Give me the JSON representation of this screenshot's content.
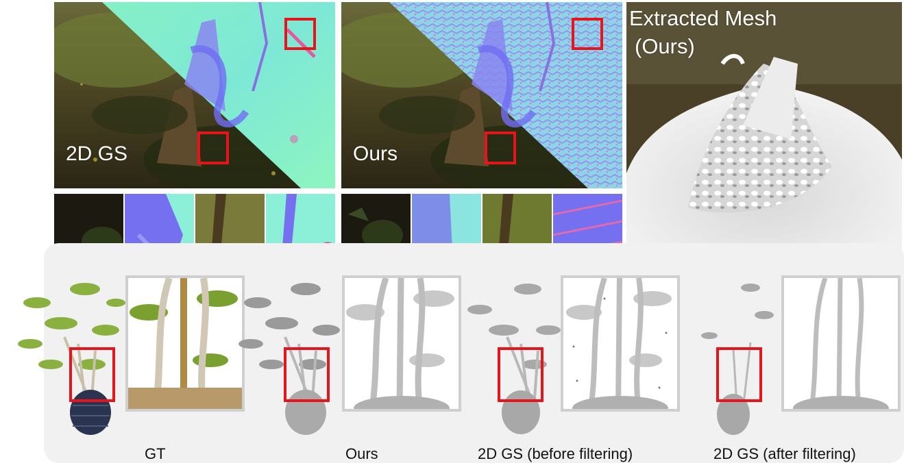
{
  "top_left": {
    "label": "2D GS"
  },
  "top_middle": {
    "label": "Ours"
  },
  "top_right": {
    "title_line1": "Extracted Mesh",
    "title_line2": "(Ours)"
  },
  "captions": {
    "gt": "GT",
    "ours": "Ours",
    "before": "2D GS (before filtering)",
    "after": "2D GS (after filtering)"
  },
  "colors": {
    "highlight_box": "#e8141b",
    "normal_cyan": "#7ef4c4",
    "normal_blue": "#7a78f0",
    "ground_dark": "#3d3620",
    "grass": "#5a6a2a",
    "panel_bg": "#f1f1f1"
  }
}
